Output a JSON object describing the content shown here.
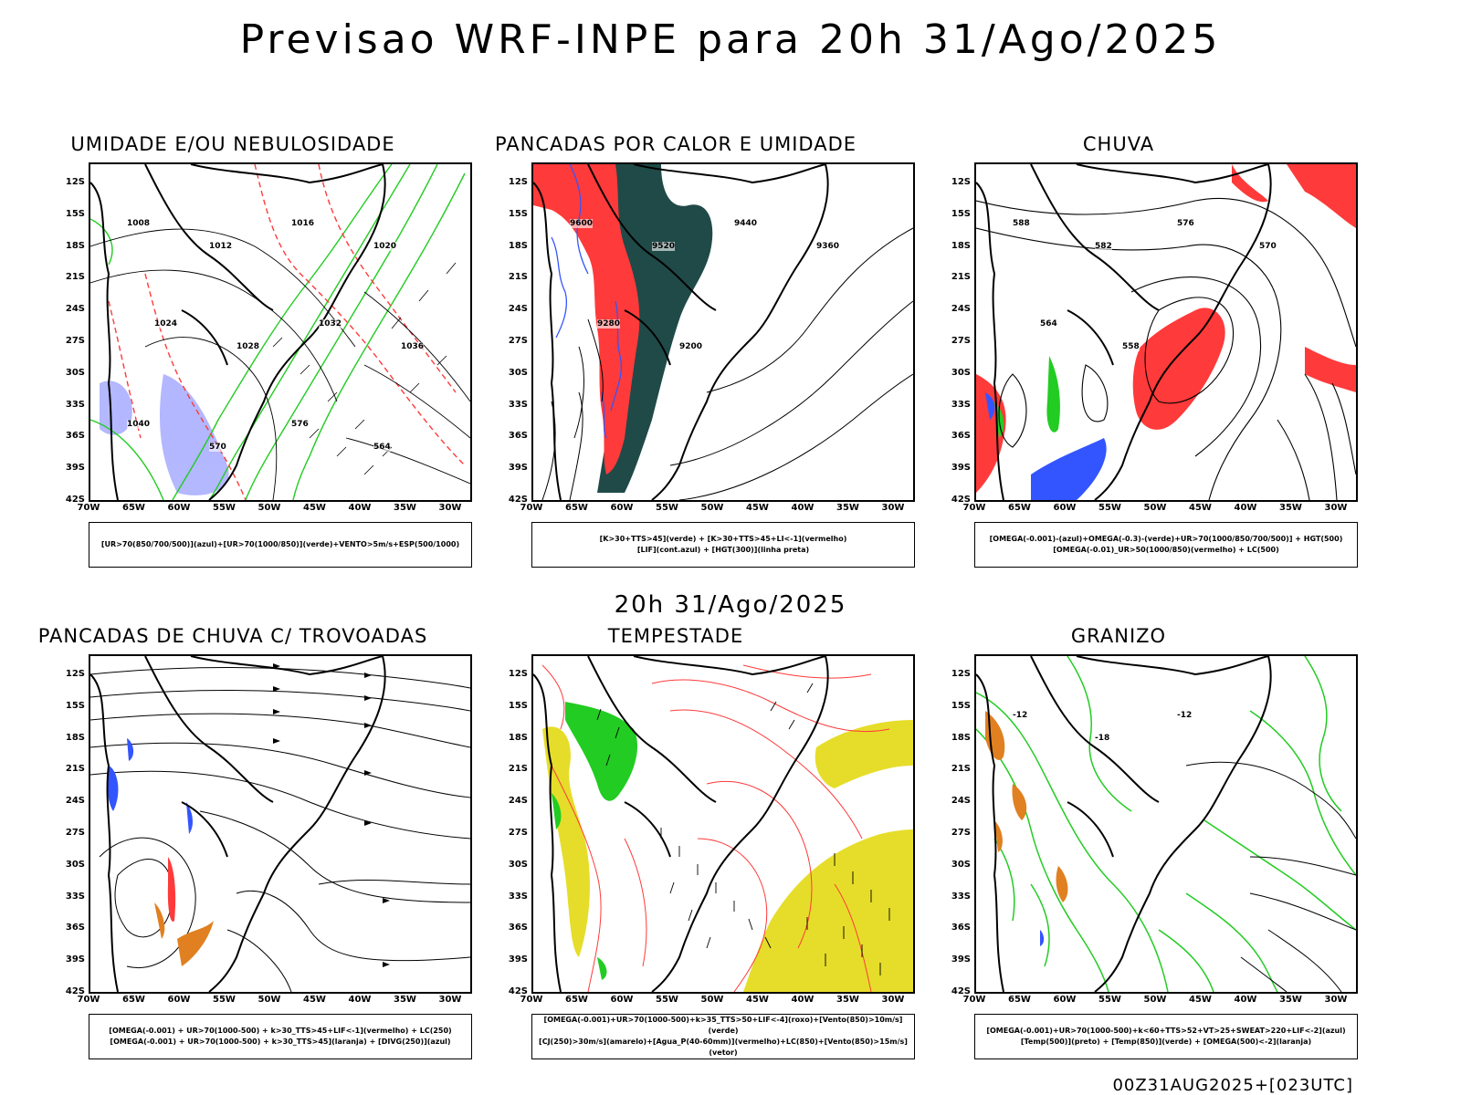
{
  "main_title": "Previsao WRF-INPE  para 20h 31/Ago/2025",
  "mid_title": "20h 31/Ago/2025",
  "footer": "00Z31AUG2025+[023UTC]",
  "latitude_labels": [
    "12S",
    "15S",
    "18S",
    "21S",
    "24S",
    "27S",
    "30S",
    "33S",
    "36S",
    "39S",
    "42S"
  ],
  "longitude_labels": [
    "70W",
    "65W",
    "60W",
    "55W",
    "50W",
    "45W",
    "40W",
    "35W",
    "30W"
  ],
  "colors": {
    "humidity_blue": "#9aa0ff",
    "green": "#22cc22",
    "red": "#ff3a3a",
    "dark_teal": "#1f4a48",
    "blue": "#3355ff",
    "yellow": "#e6dd2a",
    "orange": "#e08020"
  },
  "panels": [
    {
      "title": "UMIDADE E/OU NEBULOSIDADE",
      "legend_lines": [
        "[UR>70(850/700/500)](azul)+[UR>70(1000/850)](verde)+VENTO>5m/s+ESP(500/1000)"
      ],
      "contour_labels": [
        "1008",
        "1012",
        "1016",
        "1020",
        "1024",
        "1028",
        "1032",
        "1036",
        "1040",
        "570",
        "576",
        "564"
      ]
    },
    {
      "title": "PANCADAS POR CALOR E UMIDADE",
      "legend_lines": [
        "[K>30+TTS>45](verde) + [K>30+TTS>45+LI<-1](vermelho)",
        "[LIF](cont.azul) + [HGT(300)](linha preta)"
      ],
      "contour_labels": [
        "9600",
        "9520",
        "9440",
        "9360",
        "9280",
        "9200"
      ]
    },
    {
      "title": "CHUVA",
      "legend_lines": [
        "[OMEGA(-0.001)-(azul)+OMEGA(-0.3)-(verde)+UR>70(1000/850/700/500)] + HGT(500)",
        "[OMEGA(-0.01)_UR>50(1000/850)(vermelho) + LC(500)"
      ],
      "contour_labels": [
        "588",
        "582",
        "576",
        "570",
        "564",
        "558"
      ]
    },
    {
      "title": "PANCADAS DE CHUVA C/ TROVOADAS",
      "legend_lines": [
        "[OMEGA(-0.001) + UR>70(1000-500) + k>30_TTS>45+LIF<-1](vermelho) + LC(250)",
        "[OMEGA(-0.001) + UR>70(1000-500) + k>30_TTS>45](laranja) + [DIVG(250)](azul)"
      ],
      "contour_labels": []
    },
    {
      "title": "TEMPESTADE",
      "legend_lines": [
        "[OMEGA(-0.001)+UR>70(1000-500)+k>35_TTS>50+LIF<-4](roxo)+[Vento(850)>10m/s](verde)",
        "[CJ(250)>30m/s](amarelo)+[Agua_P(40-60mm)](vermelho)+LC(850)+[Vento(850)>15m/s](vetor)"
      ],
      "contour_labels": []
    },
    {
      "title": "GRANIZO",
      "legend_lines": [
        "[OMEGA(-0.001)+UR>70(1000-500)+k<60+TTS>52+VT>25+SWEAT>220+LIF<-2](azul)",
        "[Temp(500)](preto) + [Temp(850)](verde) + [OMEGA(500)<-2](laranja)"
      ],
      "contour_labels": [
        "-12",
        "-18",
        "-12"
      ]
    }
  ]
}
